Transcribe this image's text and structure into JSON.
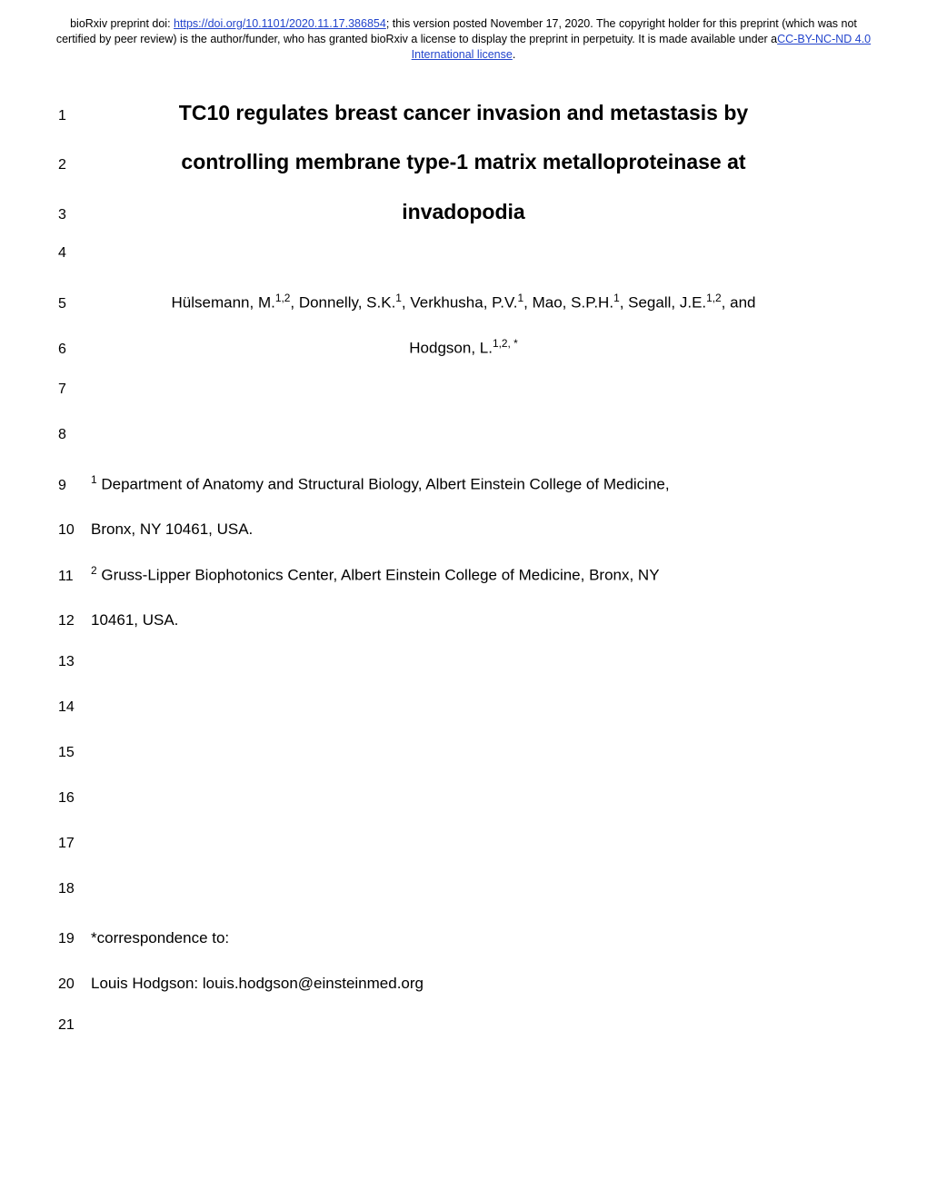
{
  "header": {
    "prefix": "bioRxiv preprint doi: ",
    "doi_url": "https://doi.org/10.1101/2020.11.17.386854",
    "middle": "; this version posted November 17, 2020. The copyright holder for this preprint (which was not certified by peer review) is the author/funder, who has granted bioRxiv a license to display the preprint in perpetuity. It is made available under a",
    "license_text": "CC-BY-NC-ND 4.0 International license",
    "suffix": "."
  },
  "lines": {
    "l1": "TC10 regulates breast cancer invasion and metastasis by",
    "l2": "controlling membrane type-1 matrix metalloproteinase at",
    "l3": "invadopodia",
    "l5_authors": [
      {
        "name": "Hülsemann, M.",
        "aff": "1,2"
      },
      {
        "name": "Donnelly, S.K.",
        "aff": "1"
      },
      {
        "name": "Verkhusha, P.V.",
        "aff": "1"
      },
      {
        "name": "Mao, S.P.H.",
        "aff": "1"
      },
      {
        "name": "Segall, J.E.",
        "aff": "1,2"
      }
    ],
    "l5_and": ", and",
    "l6_name": "Hodgson, L.",
    "l6_aff": "1,2, *",
    "l9_aff": "1",
    "l9_text": " Department of Anatomy and Structural Biology, Albert Einstein College of Medicine,",
    "l10": "Bronx, NY 10461, USA.",
    "l11_aff": "2",
    "l11_text": " Gruss-Lipper Biophotonics Center, Albert Einstein College of Medicine, Bronx, NY",
    "l12": "10461, USA.",
    "l19": "*correspondence to:",
    "l20": "Louis Hodgson: louis.hodgson@einsteinmed.org"
  },
  "line_numbers": [
    "1",
    "2",
    "3",
    "4",
    "5",
    "6",
    "7",
    "8",
    "9",
    "10",
    "11",
    "12",
    "13",
    "14",
    "15",
    "16",
    "17",
    "18",
    "19",
    "20",
    "21"
  ]
}
